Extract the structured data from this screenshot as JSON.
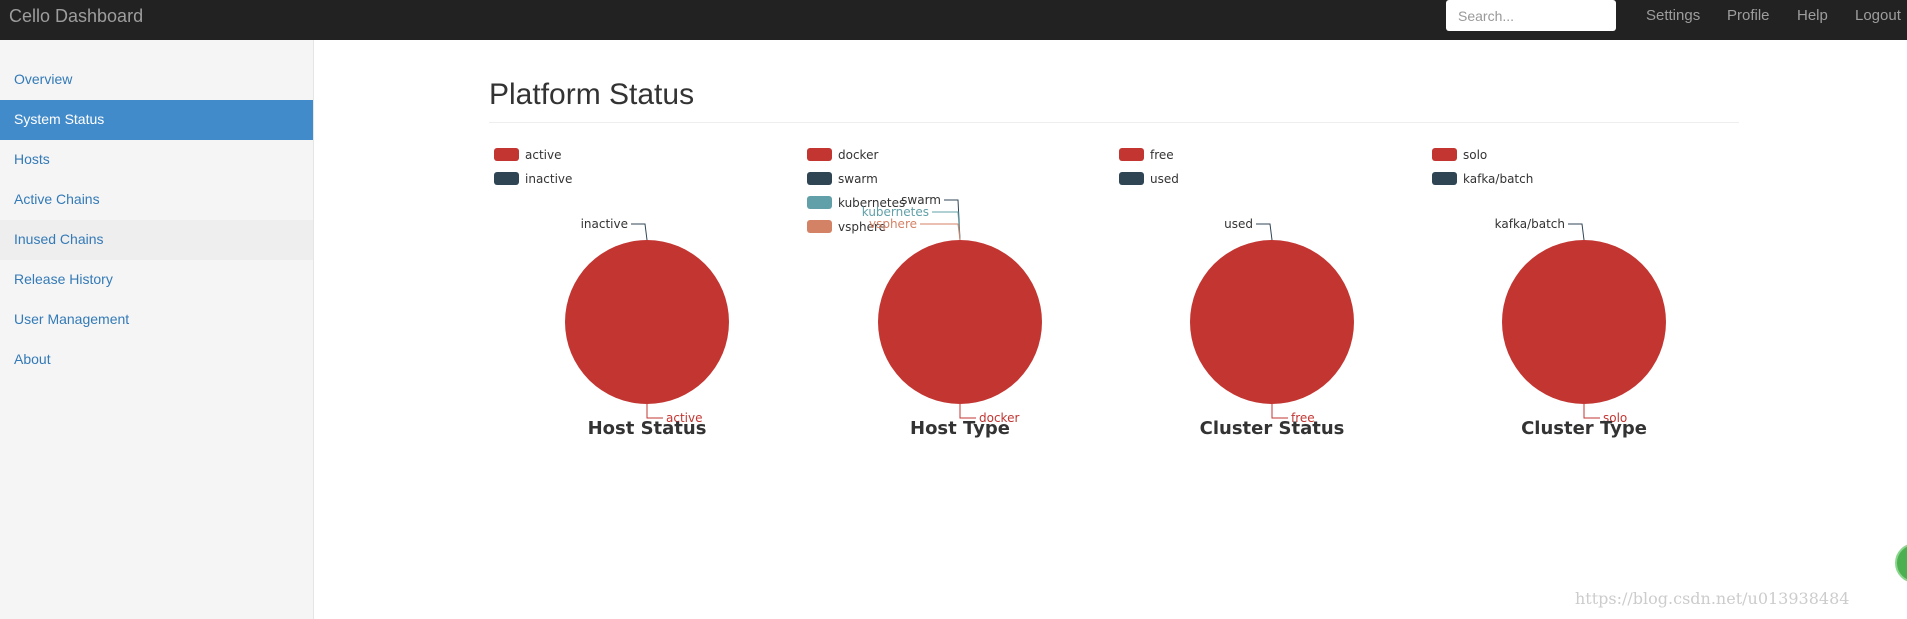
{
  "navbar": {
    "brand": "Cello Dashboard",
    "search_placeholder": "Search...",
    "links": [
      "Settings",
      "Profile",
      "Help",
      "Logout"
    ]
  },
  "sidebar": {
    "items": [
      "Overview",
      "System Status",
      "Hosts",
      "Active Chains",
      "Inused Chains",
      "Release History",
      "User Management",
      "About"
    ],
    "active": 1,
    "hover": 4
  },
  "page": {
    "title": "Platform Status"
  },
  "watermark": "https://blog.csdn.net/u013938484",
  "chart_data": [
    {
      "type": "pie",
      "title": "Host Status",
      "categories": [
        "active",
        "inactive"
      ],
      "values": [
        100,
        0
      ],
      "colors": [
        "#c23531",
        "#2f4554"
      ]
    },
    {
      "type": "pie",
      "title": "Host Type",
      "categories": [
        "docker",
        "swarm",
        "kubernetes",
        "vsphere"
      ],
      "values": [
        100,
        0,
        0,
        0
      ],
      "colors": [
        "#c23531",
        "#2f4554",
        "#61a0a8",
        "#d48265"
      ]
    },
    {
      "type": "pie",
      "title": "Cluster Status",
      "categories": [
        "free",
        "used"
      ],
      "values": [
        100,
        0
      ],
      "colors": [
        "#c23531",
        "#2f4554"
      ]
    },
    {
      "type": "pie",
      "title": "Cluster Type",
      "categories": [
        "solo",
        "kafka/batch"
      ],
      "values": [
        100,
        0
      ],
      "colors": [
        "#c23531",
        "#2f4554"
      ]
    }
  ]
}
